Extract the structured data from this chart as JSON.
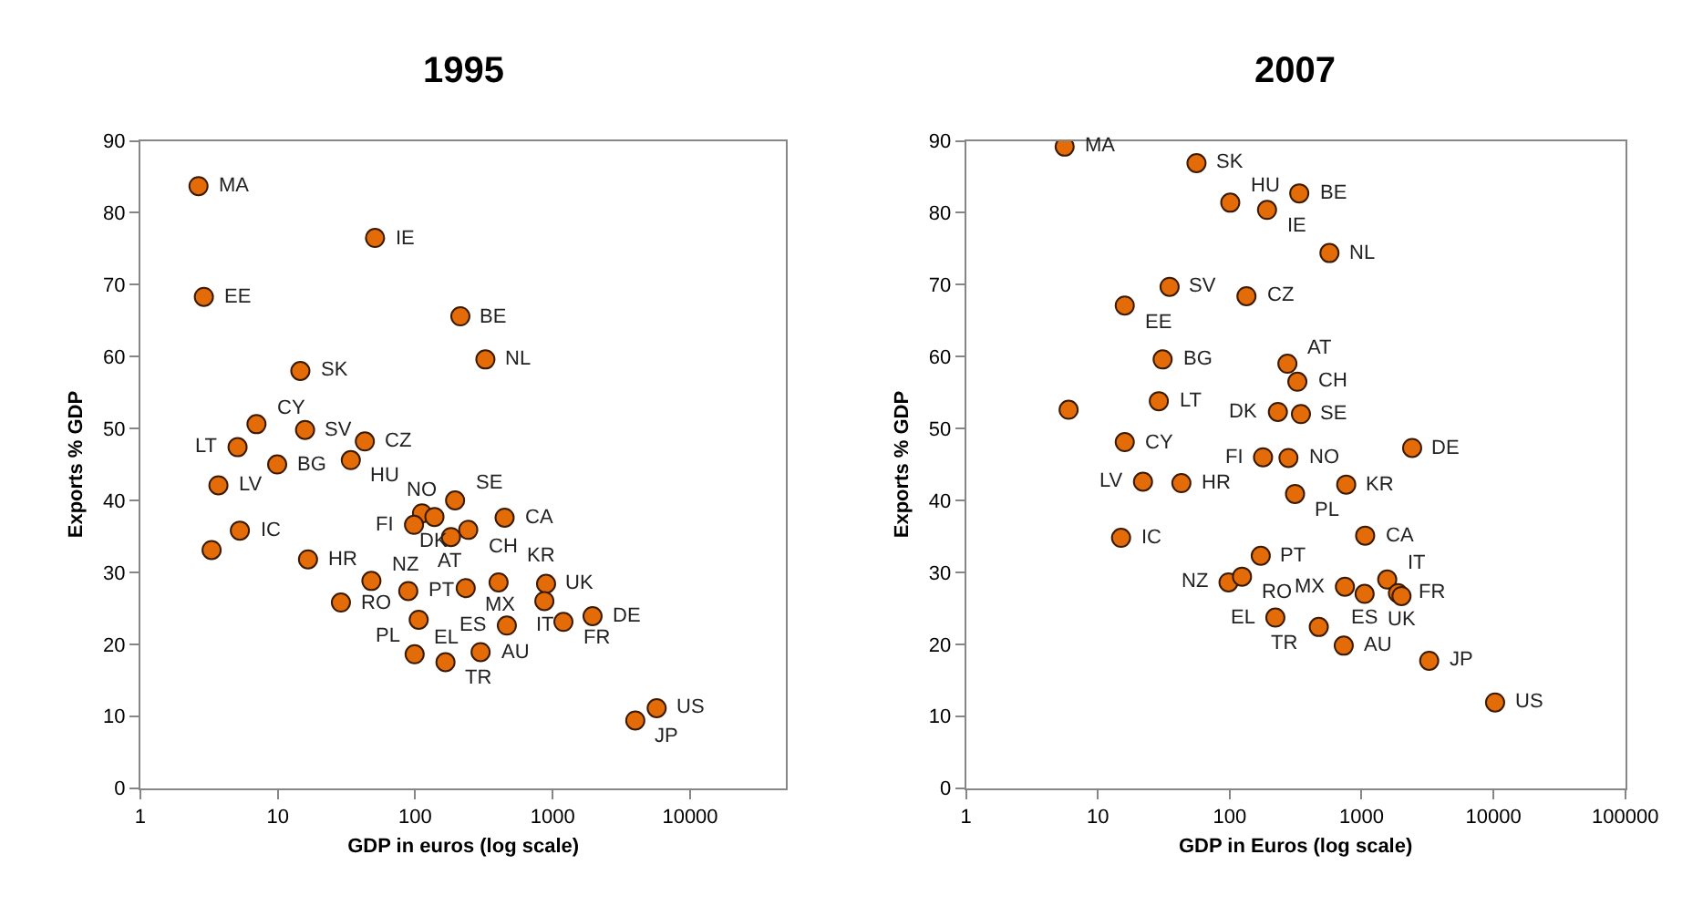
{
  "chart_data": [
    {
      "type": "scatter",
      "title": "1995",
      "xlabel": "GDP in euros (log scale)",
      "ylabel": "Exports % GDP",
      "log": "x",
      "marker": "circle",
      "color": "#e36c09",
      "xlim": [
        1,
        50000
      ],
      "xticks": [
        1,
        10,
        100,
        1000,
        10000
      ],
      "ylim": [
        0,
        90
      ],
      "yticks": [
        0,
        10,
        20,
        30,
        40,
        50,
        60,
        70,
        80,
        90
      ],
      "x": [
        2.65,
        2.9,
        14.6,
        7.0,
        15.8,
        5.1,
        9.9,
        3.7,
        5.3,
        3.3,
        16.6,
        28.8,
        51,
        213,
        324,
        43,
        34,
        195,
        112,
        138,
        98,
        447,
        243,
        182,
        48,
        89,
        233,
        404,
        895,
        870,
        464,
        1197,
        1950,
        106,
        99,
        166,
        299,
        3990,
        5710
      ],
      "values": [
        83.7,
        68.3,
        58.0,
        50.6,
        49.8,
        47.4,
        45.0,
        42.1,
        35.8,
        33.1,
        31.8,
        25.8,
        76.5,
        65.6,
        59.6,
        48.2,
        45.6,
        40.0,
        38.2,
        37.7,
        36.6,
        37.6,
        35.9,
        34.9,
        28.8,
        27.4,
        27.8,
        28.6,
        28.4,
        26.0,
        22.6,
        23.1,
        23.9,
        23.4,
        18.6,
        17.5,
        18.9,
        9.4,
        11.1
      ],
      "annotations": [
        {
          "text": "MA",
          "x": 2.65,
          "y": 83.7
        },
        {
          "text": "EE",
          "x": 2.9,
          "y": 68.3
        },
        {
          "text": "SK",
          "x": 14.6,
          "y": 58.0
        },
        {
          "text": "CY",
          "x": 7.0,
          "y": 50.6
        },
        {
          "text": "SV",
          "x": 15.8,
          "y": 49.8
        },
        {
          "text": "LT",
          "x": 5.1,
          "y": 47.4
        },
        {
          "text": "BG",
          "x": 9.9,
          "y": 45.0
        },
        {
          "text": "LV",
          "x": 3.7,
          "y": 42.1
        },
        {
          "text": "IC",
          "x": 5.3,
          "y": 35.8
        },
        {
          "text": "HR",
          "x": 16.6,
          "y": 31.8
        },
        {
          "text": "RO",
          "x": 28.8,
          "y": 25.8
        },
        {
          "text": "IE",
          "x": 51,
          "y": 76.5
        },
        {
          "text": "BE",
          "x": 213,
          "y": 65.6
        },
        {
          "text": "NL",
          "x": 324,
          "y": 59.6
        },
        {
          "text": "CZ",
          "x": 43,
          "y": 48.2
        },
        {
          "text": "HU",
          "x": 34,
          "y": 45.6
        },
        {
          "text": "SE",
          "x": 195,
          "y": 40.0
        },
        {
          "text": "NO",
          "x": 112,
          "y": 38.2
        },
        {
          "text": "DK",
          "x": 138,
          "y": 37.7
        },
        {
          "text": "FI",
          "x": 98,
          "y": 36.6
        },
        {
          "text": "CA",
          "x": 447,
          "y": 37.6
        },
        {
          "text": "CH",
          "x": 243,
          "y": 35.9
        },
        {
          "text": "AT",
          "x": 182,
          "y": 34.9
        },
        {
          "text": "NZ",
          "x": 48,
          "y": 28.8
        },
        {
          "text": "PT",
          "x": 89,
          "y": 27.4
        },
        {
          "text": "MX",
          "x": 233,
          "y": 27.8
        },
        {
          "text": "KR",
          "x": 404,
          "y": 28.6
        },
        {
          "text": "UK",
          "x": 895,
          "y": 28.4
        },
        {
          "text": "IT",
          "x": 870,
          "y": 26.0
        },
        {
          "text": "ES",
          "x": 464,
          "y": 22.6
        },
        {
          "text": "FR",
          "x": 1197,
          "y": 23.1
        },
        {
          "text": "DE",
          "x": 1950,
          "y": 23.9
        },
        {
          "text": "PL",
          "x": 106,
          "y": 23.4
        },
        {
          "text": "EL",
          "x": 99,
          "y": 18.6
        },
        {
          "text": "TR",
          "x": 166,
          "y": 17.5
        },
        {
          "text": "AU",
          "x": 299,
          "y": 18.9
        },
        {
          "text": "JP",
          "x": 3990,
          "y": 9.4
        },
        {
          "text": "US",
          "x": 5710,
          "y": 11.1
        }
      ]
    },
    {
      "type": "scatter",
      "title": "2007",
      "xlabel": "GDP in Euros (log scale)",
      "ylabel": "Exports % GDP",
      "log": "x",
      "marker": "circle",
      "color": "#e36c09",
      "xlim": [
        1,
        100000
      ],
      "xticks": [
        1,
        10,
        100,
        1000,
        10000,
        100000
      ],
      "ylim": [
        0,
        90
      ],
      "yticks": [
        0,
        10,
        20,
        30,
        40,
        50,
        60,
        70,
        80,
        90
      ],
      "x": [
        5.6,
        56,
        101,
        35,
        16,
        31,
        29,
        6.0,
        16,
        22,
        43,
        15,
        98,
        124,
        337,
        192,
        571,
        134,
        274,
        326,
        232,
        347,
        2420,
        179,
        279,
        765,
        313,
        1065,
        172,
        748,
        1566,
        1055,
        1888,
        2010,
        222,
        474,
        733,
        3260,
        10300
      ],
      "values": [
        89.2,
        86.9,
        81.4,
        69.7,
        67.1,
        59.6,
        53.8,
        52.6,
        48.1,
        42.6,
        42.4,
        34.8,
        28.6,
        29.4,
        82.7,
        80.4,
        74.4,
        68.4,
        59.0,
        56.5,
        52.3,
        52.0,
        47.3,
        46.0,
        45.9,
        42.2,
        40.9,
        35.1,
        32.3,
        28.0,
        29.0,
        27.0,
        27.1,
        26.7,
        23.7,
        22.4,
        19.8,
        17.7,
        11.9
      ],
      "annotations": [
        {
          "text": "MA",
          "x": 5.6,
          "y": 89.2
        },
        {
          "text": "SK",
          "x": 56,
          "y": 86.9
        },
        {
          "text": "HU",
          "x": 101,
          "y": 81.4
        },
        {
          "text": "SV",
          "x": 35,
          "y": 69.7
        },
        {
          "text": "EE",
          "x": 16,
          "y": 67.1
        },
        {
          "text": "BG",
          "x": 31,
          "y": 59.6
        },
        {
          "text": "LT",
          "x": 29,
          "y": 53.8
        },
        {
          "text": "CY",
          "x": 16,
          "y": 48.1
        },
        {
          "text": "LV",
          "x": 22,
          "y": 42.6
        },
        {
          "text": "HR",
          "x": 43,
          "y": 42.4
        },
        {
          "text": "IC",
          "x": 15,
          "y": 34.8
        },
        {
          "text": "NZ",
          "x": 98,
          "y": 28.6
        },
        {
          "text": "RO",
          "x": 124,
          "y": 29.4
        },
        {
          "text": "BE",
          "x": 337,
          "y": 82.7
        },
        {
          "text": "IE",
          "x": 192,
          "y": 80.4
        },
        {
          "text": "NL",
          "x": 571,
          "y": 74.4
        },
        {
          "text": "CZ",
          "x": 134,
          "y": 68.4
        },
        {
          "text": "AT",
          "x": 274,
          "y": 59.0
        },
        {
          "text": "CH",
          "x": 326,
          "y": 56.5
        },
        {
          "text": "DK",
          "x": 232,
          "y": 52.3
        },
        {
          "text": "SE",
          "x": 347,
          "y": 52.0
        },
        {
          "text": "DE",
          "x": 2420,
          "y": 47.3
        },
        {
          "text": "FI",
          "x": 179,
          "y": 46.0
        },
        {
          "text": "NO",
          "x": 279,
          "y": 45.9
        },
        {
          "text": "KR",
          "x": 765,
          "y": 42.2
        },
        {
          "text": "PL",
          "x": 313,
          "y": 40.9
        },
        {
          "text": "CA",
          "x": 1065,
          "y": 35.1
        },
        {
          "text": "PT",
          "x": 172,
          "y": 32.3
        },
        {
          "text": "MX",
          "x": 748,
          "y": 28.0
        },
        {
          "text": "IT",
          "x": 1566,
          "y": 29.0
        },
        {
          "text": "ES",
          "x": 1055,
          "y": 27.0
        },
        {
          "text": "FR",
          "x": 1888,
          "y": 27.1
        },
        {
          "text": "UK",
          "x": 2010,
          "y": 26.7
        },
        {
          "text": "EL",
          "x": 222,
          "y": 23.7
        },
        {
          "text": "TR",
          "x": 474,
          "y": 22.4
        },
        {
          "text": "AU",
          "x": 733,
          "y": 19.8
        },
        {
          "text": "JP",
          "x": 3260,
          "y": 17.7
        },
        {
          "text": "US",
          "x": 10300,
          "y": 11.9
        }
      ]
    }
  ]
}
